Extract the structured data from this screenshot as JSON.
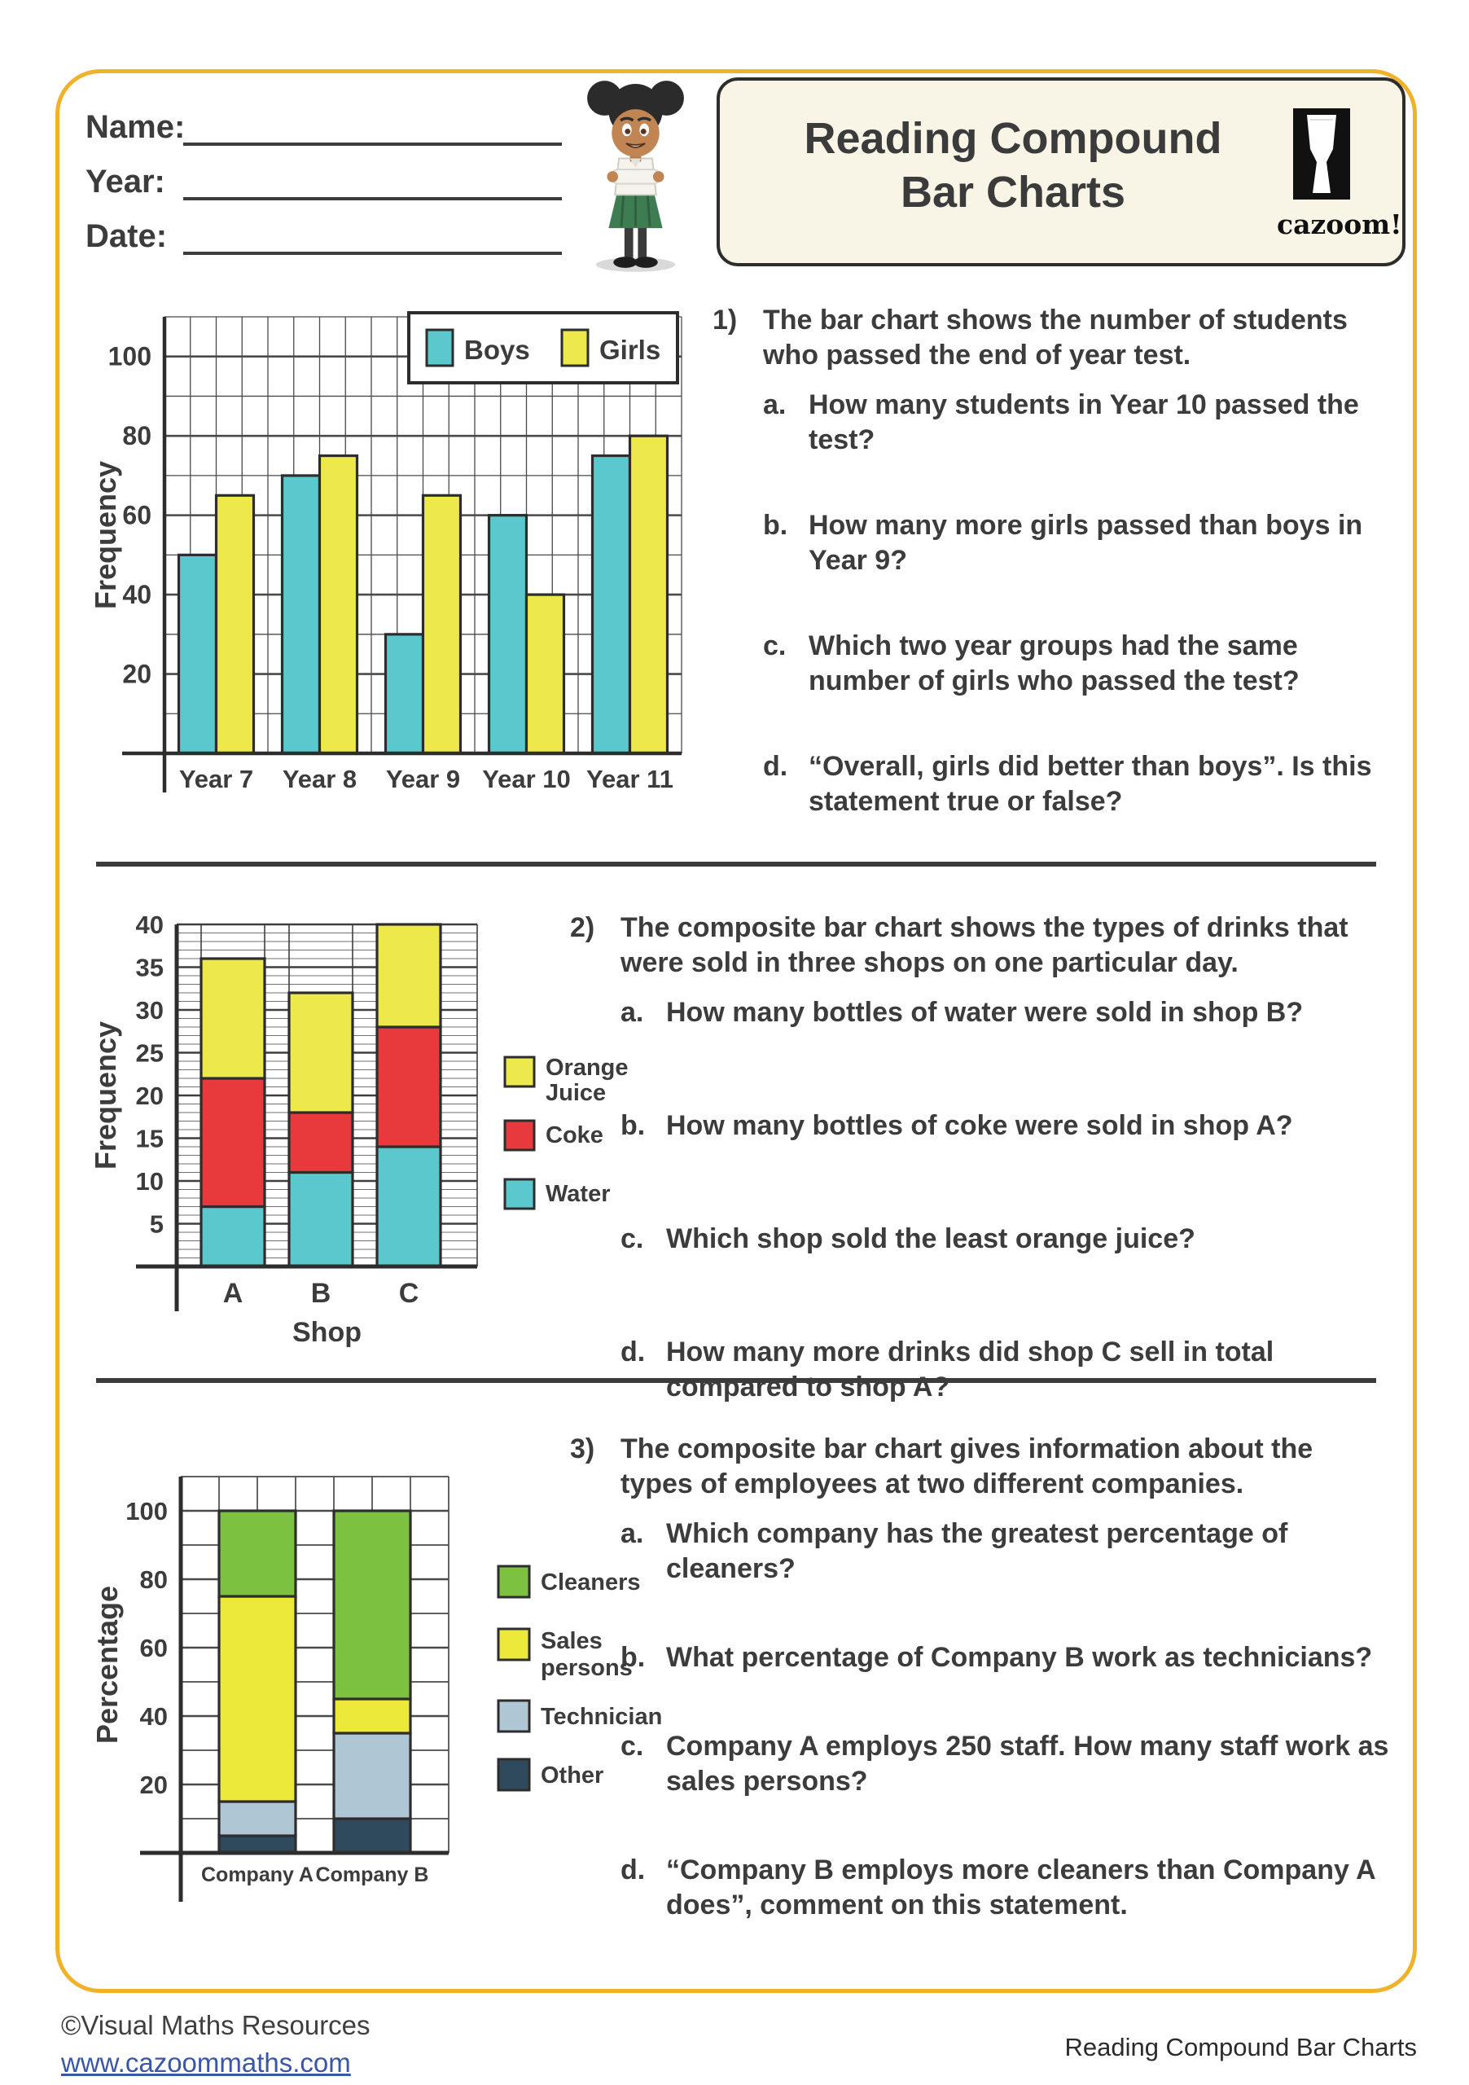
{
  "header": {
    "name_label": "Name:",
    "year_label": "Year:",
    "date_label": "Date:",
    "title": {
      "line1": "Reading Compound",
      "line2": "Bar Charts"
    },
    "logo_text": "cazoom!"
  },
  "colors": {
    "page_border": "#F0B22B",
    "title_box_bg": "#F8F4E6",
    "text": "#3C3C3C",
    "link": "#3A57A7",
    "chart_outline": "#2D2D2D"
  },
  "questions": [
    {
      "number": "1)",
      "intro": "The bar chart shows the number of students\nwho passed the end of year test.",
      "parts": [
        {
          "label": "a.",
          "text": "How many students in Year 10 passed the\ntest?"
        },
        {
          "label": "b.",
          "text": "How many more girls passed than boys in\nYear 9?"
        },
        {
          "label": "c.",
          "text": "Which two year groups had the same\nnumber of girls who passed the test?"
        },
        {
          "label": "d.",
          "text": "“Overall, girls did better than boys”. Is this\nstatement true or false?"
        }
      ]
    },
    {
      "number": "2)",
      "intro": "The composite bar chart shows the types of drinks that\nwere sold in three shops on one particular day.",
      "parts": [
        {
          "label": "a.",
          "text": "How many bottles of water were sold in shop B?"
        },
        {
          "label": "b.",
          "text": "How many bottles of coke were sold in shop A?"
        },
        {
          "label": "c.",
          "text": "Which shop sold the least orange juice?"
        },
        {
          "label": "d.",
          "text": "How many more drinks did shop C sell in total\ncompared to shop A?"
        }
      ]
    },
    {
      "number": "3)",
      "intro": "The composite bar chart gives information about the\ntypes of employees at two different companies.",
      "parts": [
        {
          "label": "a.",
          "text": "Which company has the greatest percentage of\ncleaners?"
        },
        {
          "label": "b.",
          "text": "What percentage of Company B work as technicians?"
        },
        {
          "label": "c.",
          "text": "Company A employs 250 staff. How many staff work as\nsales persons?"
        },
        {
          "label": "d.",
          "text": "“Company B employs more cleaners than Company A\ndoes”, comment on this statement."
        }
      ]
    }
  ],
  "chart_data": [
    {
      "type": "bar",
      "variant": "grouped",
      "title": "",
      "xlabel": "",
      "ylabel": "Frequency",
      "categories": [
        "Year 7",
        "Year 8",
        "Year 9",
        "Year 10",
        "Year 11"
      ],
      "series": [
        {
          "name": "Boys",
          "color": "#5BC8CD",
          "values": [
            50,
            70,
            30,
            60,
            75
          ]
        },
        {
          "name": "Girls",
          "color": "#EDE84B",
          "values": [
            65,
            75,
            65,
            40,
            80
          ]
        }
      ],
      "ylim": [
        0,
        110
      ],
      "yticks": [
        20,
        40,
        60,
        80,
        100
      ],
      "grid": true,
      "legend_position": "top-right"
    },
    {
      "type": "bar",
      "variant": "stacked",
      "title": "",
      "xlabel": "Shop",
      "ylabel": "Frequency",
      "categories": [
        "A",
        "B",
        "C"
      ],
      "series": [
        {
          "name": "Water",
          "color": "#5BC8CD",
          "values": [
            7,
            11,
            14
          ]
        },
        {
          "name": "Coke",
          "color": "#E8393D",
          "values": [
            15,
            7,
            14
          ]
        },
        {
          "name": "Orange Juice",
          "color": "#EDE84B",
          "values": [
            14,
            14,
            12
          ]
        }
      ],
      "totals": [
        36,
        32,
        40
      ],
      "ylim": [
        0,
        40
      ],
      "yticks": [
        5,
        10,
        15,
        20,
        25,
        30,
        35,
        40
      ],
      "minor_grid_step": 1,
      "grid": true,
      "legend_position": "right"
    },
    {
      "type": "bar",
      "variant": "stacked",
      "title": "",
      "xlabel": "",
      "ylabel": "Percentage",
      "categories": [
        "Company A",
        "Company B"
      ],
      "series": [
        {
          "name": "Other",
          "color": "#2E4A5C",
          "values": [
            5,
            10
          ]
        },
        {
          "name": "Technicians",
          "color": "#AFC6D4",
          "values": [
            10,
            25
          ]
        },
        {
          "name": "Sales persons",
          "color": "#EDE93B",
          "values": [
            60,
            10
          ]
        },
        {
          "name": "Cleaners",
          "color": "#7DC141",
          "values": [
            25,
            55
          ]
        }
      ],
      "ylim": [
        0,
        110
      ],
      "yticks": [
        20,
        40,
        60,
        80,
        100
      ],
      "grid": true,
      "legend_position": "right"
    }
  ],
  "footer": {
    "copyright": "©Visual Maths Resources",
    "website": "www.cazoommaths.com",
    "doc_title": "Reading Compound Bar Charts"
  }
}
